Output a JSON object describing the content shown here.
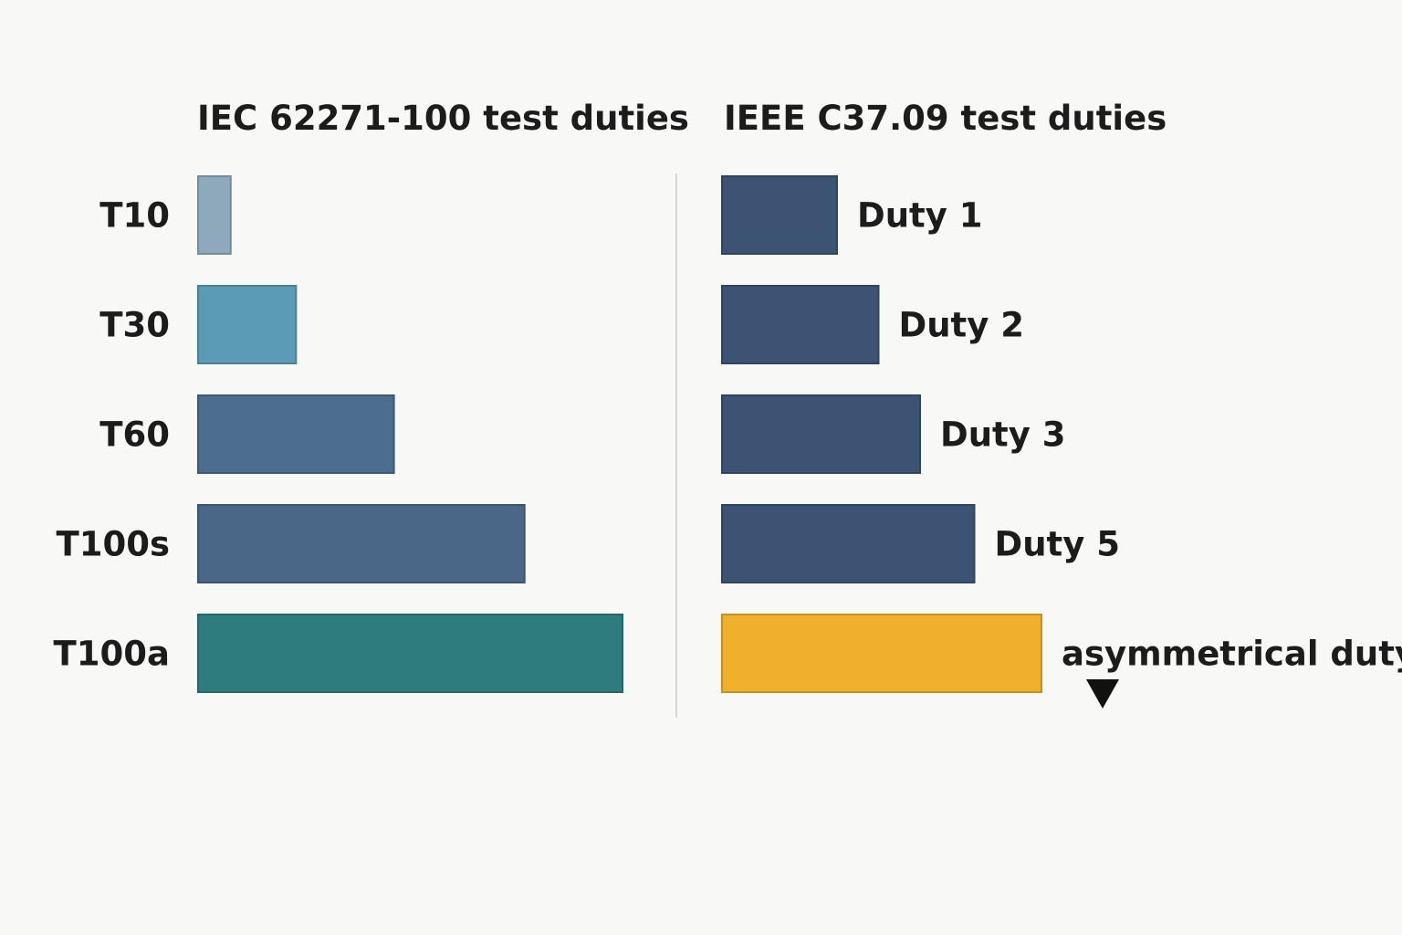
{
  "chart_data": [
    {
      "type": "bar",
      "orientation": "horizontal",
      "title": "IEC 62271-100 test duties",
      "label_side": "left",
      "categories": [
        "T10",
        "T30",
        "T60",
        "T100s",
        "T100a"
      ],
      "values": [
        10,
        30,
        60,
        100,
        130
      ],
      "colors": [
        "#8ea9bc",
        "#5b9bb5",
        "#4c6d8e",
        "#4a6788",
        "#2e7c7e"
      ],
      "xlabel": "",
      "ylabel": "",
      "xlim": [
        0,
        130
      ],
      "grid": false,
      "legend": "none"
    },
    {
      "type": "bar",
      "orientation": "horizontal",
      "title": "IEEE C37.09 test duties",
      "label_side": "right",
      "categories": [
        "Duty 1",
        "Duty 2",
        "Duty 3",
        "Duty 5",
        "asymmetrical duty"
      ],
      "values": [
        36,
        49,
        62,
        79,
        100
      ],
      "colors": [
        "#3c5374",
        "#3c5374",
        "#3c5374",
        "#3c5374",
        "#f0b02b"
      ],
      "annotation_marker": "down-triangle below asymmetrical duty",
      "xlabel": "",
      "ylabel": "",
      "xlim": [
        0,
        100
      ],
      "grid": false,
      "legend": "none"
    }
  ]
}
